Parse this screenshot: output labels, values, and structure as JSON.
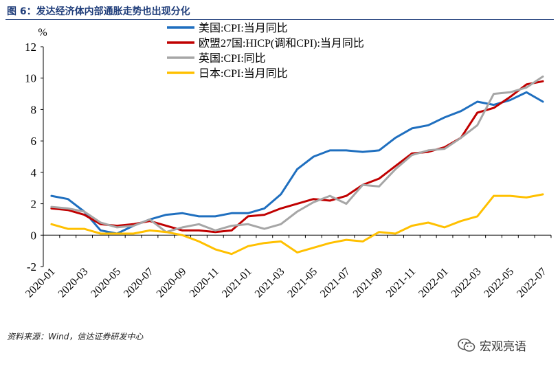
{
  "title": "图 6：发达经济体内部通胀走势也出现分化",
  "source": "资料来源：Wind，信达证券研发中心",
  "watermark": "宏观亮语",
  "chart_data": {
    "type": "line",
    "ylabel": "%",
    "ylim": [
      -2,
      12
    ],
    "yticks": [
      -2,
      0,
      2,
      4,
      6,
      8,
      10,
      12
    ],
    "grid": false,
    "legend_position": "top-left",
    "x": [
      "2020-01",
      "2020-02",
      "2020-03",
      "2020-04",
      "2020-05",
      "2020-06",
      "2020-07",
      "2020-08",
      "2020-09",
      "2020-10",
      "2020-11",
      "2020-12",
      "2021-01",
      "2021-02",
      "2021-03",
      "2021-04",
      "2021-05",
      "2021-06",
      "2021-07",
      "2021-08",
      "2021-09",
      "2021-10",
      "2021-11",
      "2021-12",
      "2022-01",
      "2022-02",
      "2022-03",
      "2022-04",
      "2022-05",
      "2022-06",
      "2022-07"
    ],
    "xticklabels": [
      "2020-01",
      "2020-03",
      "2020-05",
      "2020-07",
      "2020-09",
      "2020-11",
      "2021-01",
      "2021-03",
      "2021-05",
      "2021-07",
      "2021-09",
      "2021-11",
      "2022-01",
      "2022-03",
      "2022-05",
      "2022-07"
    ],
    "series": [
      {
        "name": "美国:CPI:当月同比",
        "color": "#1f6fbf",
        "values": [
          2.5,
          2.3,
          1.5,
          0.3,
          0.1,
          0.6,
          1.0,
          1.3,
          1.4,
          1.2,
          1.2,
          1.4,
          1.4,
          1.7,
          2.6,
          4.2,
          5.0,
          5.4,
          5.4,
          5.3,
          5.4,
          6.2,
          6.8,
          7.0,
          7.5,
          7.9,
          8.5,
          8.3,
          8.6,
          9.1,
          8.5
        ]
      },
      {
        "name": "欧盟27国:HICP(调和CPI):当月同比",
        "color": "#c00000",
        "values": [
          1.7,
          1.6,
          1.3,
          0.7,
          0.6,
          0.7,
          0.9,
          0.6,
          0.3,
          0.3,
          0.2,
          0.3,
          1.2,
          1.3,
          1.7,
          2.0,
          2.3,
          2.2,
          2.5,
          3.2,
          3.6,
          4.4,
          5.2,
          5.3,
          5.6,
          6.2,
          7.8,
          8.1,
          8.8,
          9.6,
          9.8
        ]
      },
      {
        "name": "英国:CPI:同比",
        "color": "#a6a6a6",
        "values": [
          1.8,
          1.7,
          1.5,
          0.8,
          0.5,
          0.6,
          1.0,
          0.2,
          0.5,
          0.7,
          0.3,
          0.6,
          0.7,
          0.4,
          0.7,
          1.5,
          2.1,
          2.5,
          2.0,
          3.2,
          3.1,
          4.2,
          5.1,
          5.4,
          5.5,
          6.2,
          7.0,
          9.0,
          9.1,
          9.4,
          10.1
        ]
      },
      {
        "name": "日本:CPI:当月同比",
        "color": "#ffc000",
        "values": [
          0.7,
          0.4,
          0.4,
          0.1,
          0.1,
          0.1,
          0.3,
          0.2,
          0.0,
          -0.4,
          -0.9,
          -1.2,
          -0.7,
          -0.5,
          -0.4,
          -1.1,
          -0.8,
          -0.5,
          -0.3,
          -0.4,
          0.2,
          0.1,
          0.6,
          0.8,
          0.5,
          0.9,
          1.2,
          2.5,
          2.5,
          2.4,
          2.6
        ]
      }
    ]
  }
}
